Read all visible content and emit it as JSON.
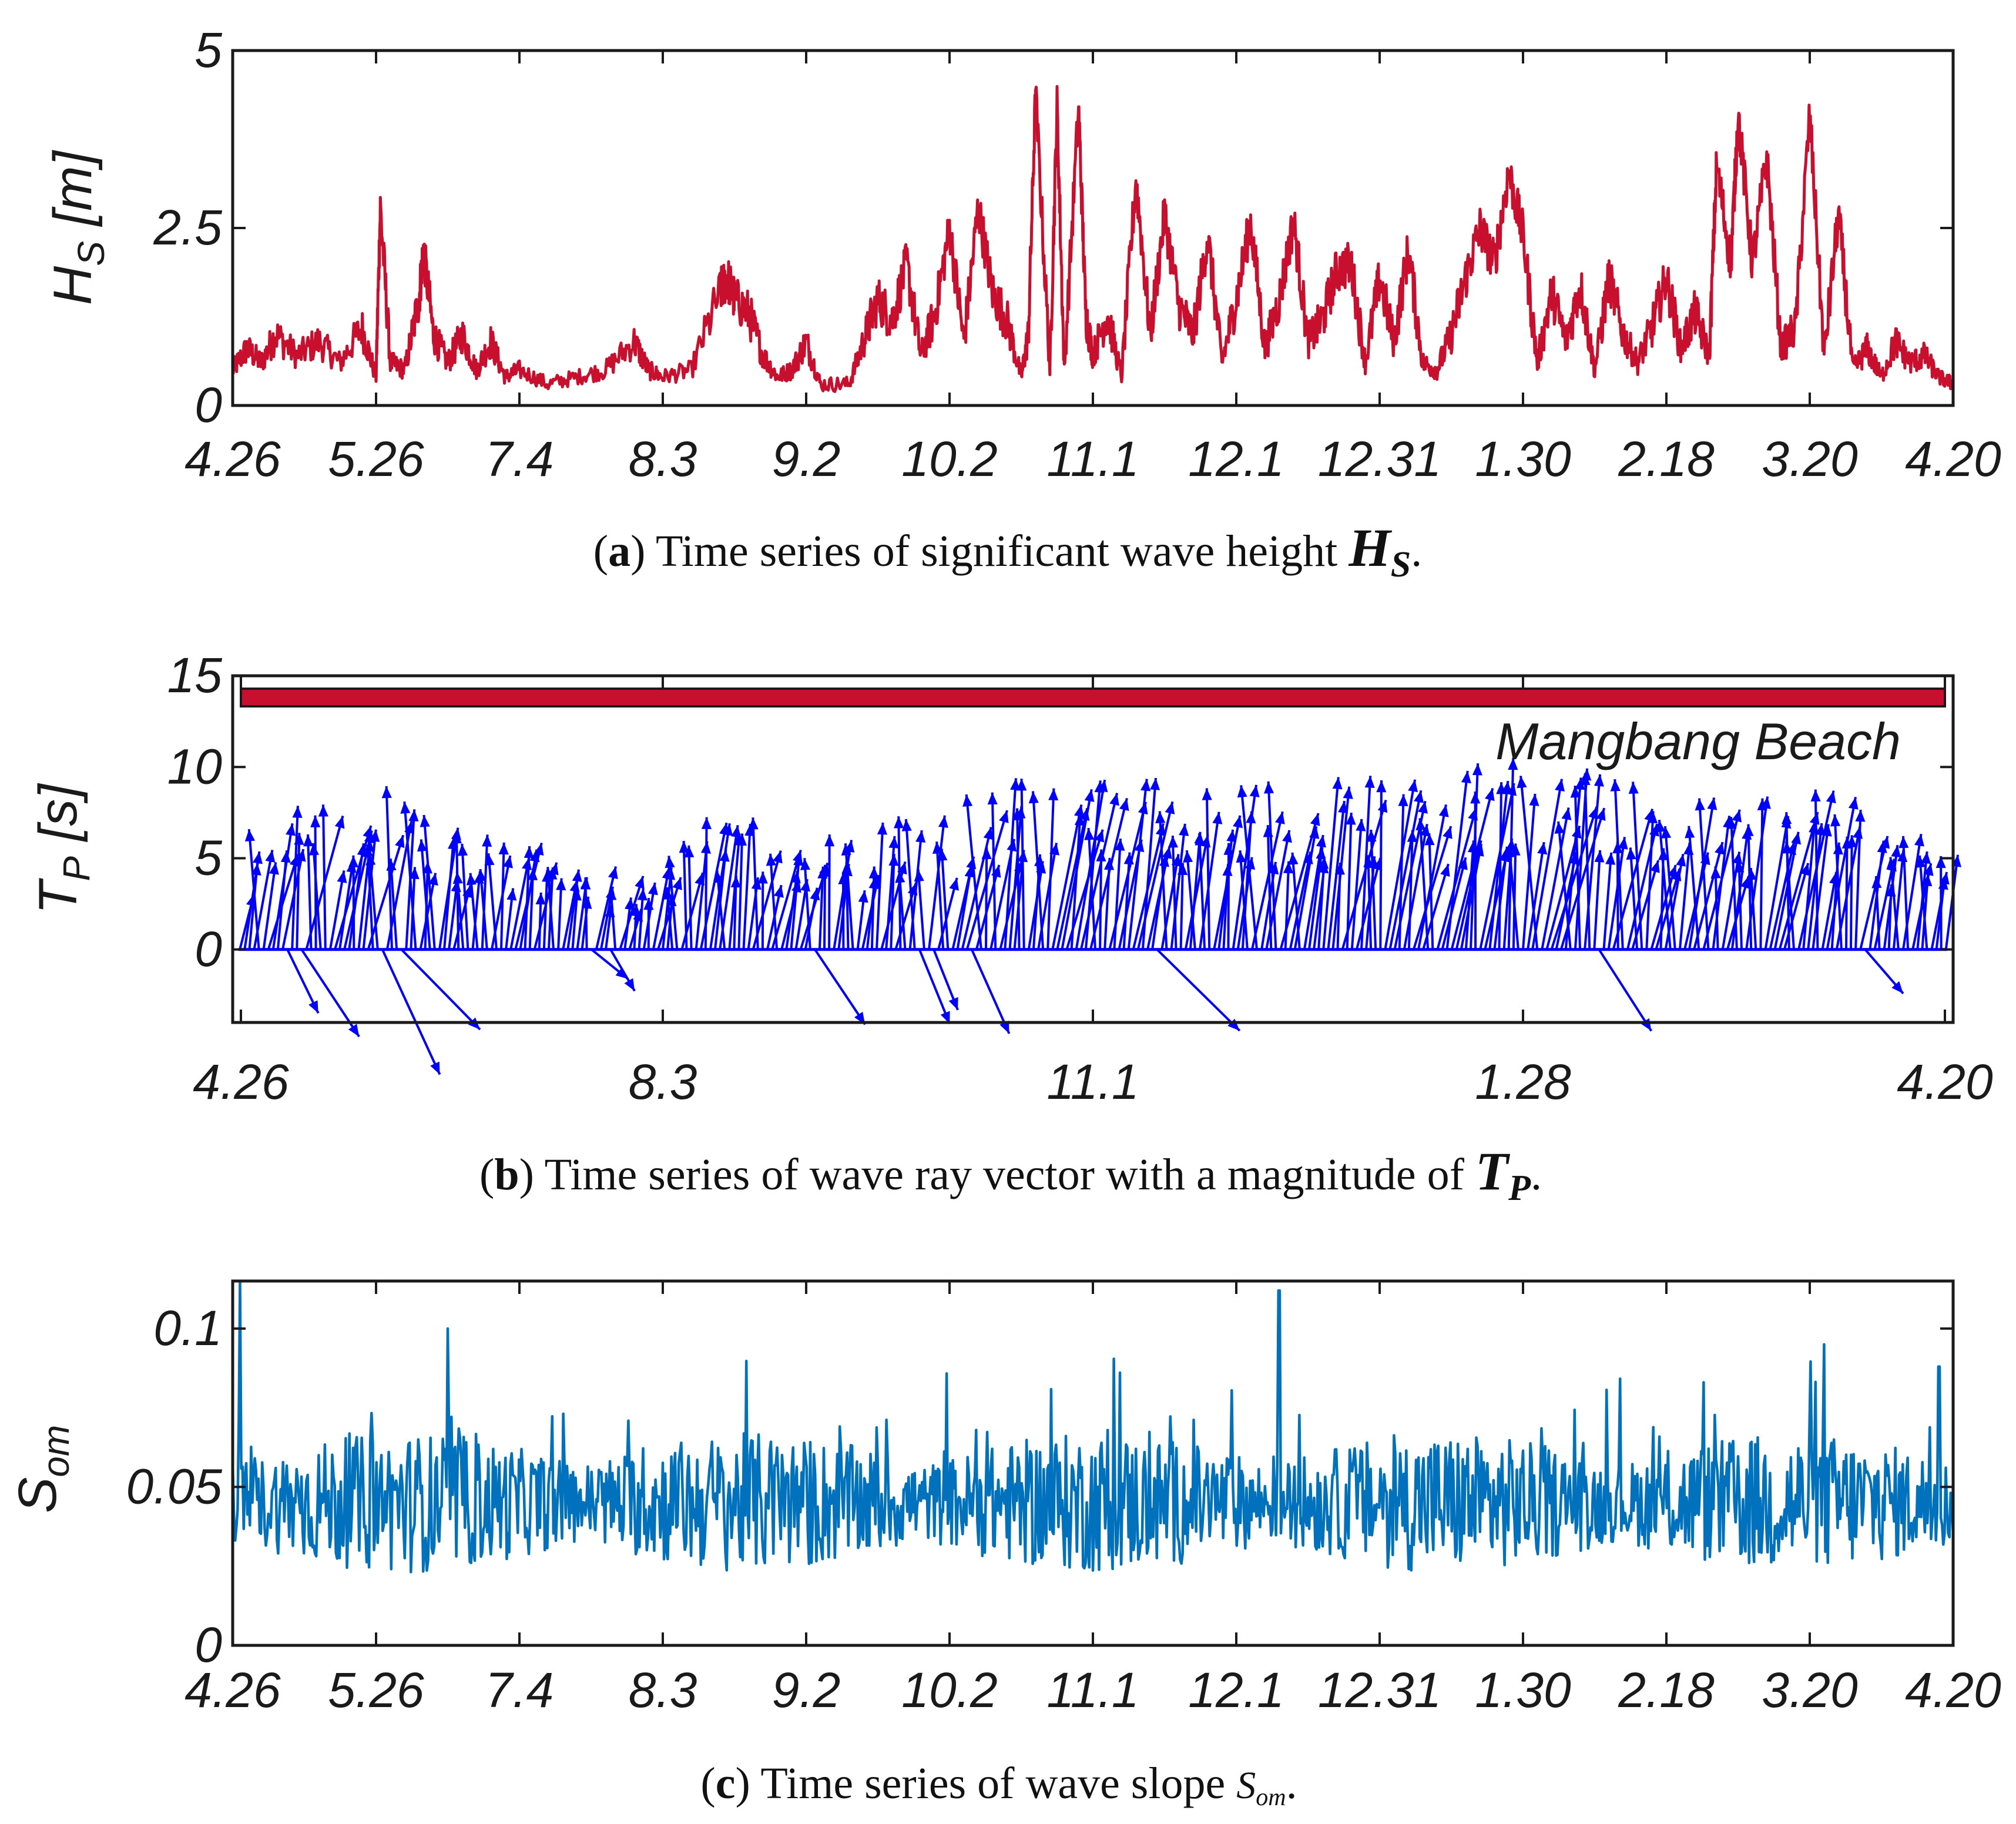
{
  "colors": {
    "hs_line": "#c8102e",
    "tp_vectors": "#0000ff",
    "som_line": "#0072bd",
    "beach_bar": "#c8102e",
    "axis": "#1a1a1a"
  },
  "chart_data": [
    {
      "id": "a",
      "type": "line",
      "title": "",
      "ylabel_main": "H",
      "ylabel_sub": "S",
      "ylabel_unit": "[m]",
      "ylim": [
        0,
        5
      ],
      "yticks": [
        0,
        2.5,
        5
      ],
      "ytick_labels": [
        "0",
        "2.5",
        "5"
      ],
      "xlim": [
        0,
        12
      ],
      "xticks": [
        0,
        1,
        2,
        3,
        4,
        5,
        6,
        7,
        8,
        9,
        10,
        11,
        12
      ],
      "xtick_labels": [
        "4.26",
        "5.26",
        "7.4",
        "8.3",
        "9.2",
        "10.2",
        "11.1",
        "12.1",
        "12.31",
        "1.30",
        "2.18",
        "3.20",
        "4.20"
      ],
      "caption_letter": "a",
      "caption_text": "Time series of significant wave height",
      "caption_symbol": "H",
      "caption_symbol_sub": "S",
      "caption_end": ".",
      "series": [
        {
          "name": "Hs",
          "x": [
            0,
            0.1,
            0.2,
            0.3,
            0.45,
            0.6,
            0.75,
            0.9,
            1.0,
            1.03,
            1.1,
            1.2,
            1.3,
            1.33,
            1.4,
            1.5,
            1.6,
            1.7,
            1.8,
            1.9,
            2.0,
            2.2,
            2.4,
            2.6,
            2.8,
            2.9,
            3.0,
            3.2,
            3.4,
            3.45,
            3.5,
            3.6,
            3.7,
            3.8,
            3.9,
            4.0,
            4.1,
            4.3,
            4.4,
            4.5,
            4.6,
            4.7,
            4.8,
            4.9,
            5.0,
            5.1,
            5.2,
            5.3,
            5.4,
            5.5,
            5.55,
            5.6,
            5.7,
            5.75,
            5.8,
            5.9,
            5.95,
            6.0,
            6.1,
            6.2,
            6.3,
            6.4,
            6.5,
            6.6,
            6.7,
            6.8,
            6.9,
            7.0,
            7.1,
            7.2,
            7.3,
            7.4,
            7.5,
            7.6,
            7.7,
            7.8,
            7.9,
            8.0,
            8.1,
            8.2,
            8.3,
            8.4,
            8.5,
            8.6,
            8.7,
            8.8,
            8.9,
            9.0,
            9.1,
            9.2,
            9.3,
            9.4,
            9.5,
            9.6,
            9.7,
            9.8,
            9.9,
            10.0,
            10.1,
            10.2,
            10.3,
            10.35,
            10.45,
            10.5,
            10.6,
            10.7,
            10.8,
            10.9,
            11.0,
            11.1,
            11.2,
            11.3,
            11.4,
            11.5,
            11.6,
            11.7,
            11.8,
            11.9,
            12.0
          ],
          "values": [
            0.5,
            0.8,
            0.6,
            1.0,
            0.7,
            0.9,
            0.6,
            1.1,
            0.4,
            2.8,
            0.6,
            0.5,
            1.5,
            2.2,
            1.0,
            0.6,
            1.0,
            0.5,
            0.9,
            0.4,
            0.5,
            0.3,
            0.4,
            0.5,
            0.9,
            0.5,
            0.4,
            0.5,
            1.6,
            1.8,
            1.5,
            1.3,
            0.7,
            0.4,
            0.5,
            0.9,
            0.3,
            0.3,
            0.9,
            1.5,
            1.2,
            2.0,
            0.7,
            1.3,
            2.5,
            0.9,
            2.8,
            1.6,
            1.2,
            0.4,
            1.0,
            4.4,
            0.5,
            4.2,
            0.5,
            4.2,
            1.3,
            0.7,
            1.3,
            0.4,
            3.2,
            1.0,
            2.7,
            1.4,
            1.0,
            2.4,
            0.6,
            1.5,
            2.6,
            0.8,
            1.5,
            2.6,
            0.9,
            1.2,
            1.9,
            2.0,
            0.6,
            1.8,
            0.9,
            2.2,
            0.6,
            0.5,
            1.0,
            1.8,
            2.5,
            2.0,
            3.3,
            2.4,
            0.6,
            1.6,
            0.9,
            1.7,
            0.5,
            1.8,
            1.0,
            0.6,
            1.1,
            1.8,
            0.8,
            1.3,
            0.7,
            3.4,
            2.0,
            4.1,
            2.0,
            3.5,
            0.8,
            1.1,
            4.1,
            0.7,
            2.7,
            0.5,
            0.8,
            0.4,
            0.9,
            0.6,
            0.7,
            0.4,
            0.3
          ]
        }
      ]
    },
    {
      "id": "b",
      "type": "scatter",
      "ylabel_main": "T",
      "ylabel_sub": "P",
      "ylabel_unit": "[s]",
      "ylim": [
        -4,
        15
      ],
      "yticks": [
        0,
        5,
        10,
        15
      ],
      "ytick_labels": [
        "0",
        "5",
        "10",
        "15"
      ],
      "xlim": [
        0,
        12
      ],
      "xticks": [
        0,
        3,
        6,
        9,
        12
      ],
      "xtick_labels": [
        "4.26",
        "8.3",
        "11.1",
        "1.28",
        "4.20"
      ],
      "annotation": "Mangbang Beach",
      "beach_bar_y": 14.2,
      "caption_letter": "b",
      "caption_text": "Time series of wave ray vector with a magnitude of",
      "caption_symbol": "T",
      "caption_symbol_sub": "P",
      "caption_end": ".",
      "vectors_note": "wave ray vectors (origin on t-axis, length = Tp, angle = direction)",
      "vector_count": 360
    },
    {
      "id": "c",
      "type": "line",
      "ylabel_main": "S",
      "ylabel_sub": "om",
      "ylim": [
        0,
        0.115
      ],
      "yticks": [
        0,
        0.05,
        0.1
      ],
      "ytick_labels": [
        "0",
        "0.05",
        "0.1"
      ],
      "xlim": [
        0,
        12
      ],
      "xticks": [
        0,
        1,
        2,
        3,
        4,
        5,
        6,
        7,
        8,
        9,
        10,
        11,
        12
      ],
      "xtick_labels": [
        "4.26",
        "5.26",
        "7.4",
        "8.3",
        "9.2",
        "10.2",
        "11.1",
        "12.1",
        "12.31",
        "1.30",
        "2.18",
        "3.20",
        "4.20"
      ],
      "caption_letter": "c",
      "caption_text": "Time series of wave slope",
      "caption_symbol": "S",
      "caption_symbol_sub": "om",
      "caption_end": ".",
      "series": [
        {
          "name": "Som",
          "mean": 0.045,
          "peaks": [
            [
              0.05,
              0.115
            ],
            [
              1.5,
              0.1
            ],
            [
              7.3,
              0.112
            ],
            [
              11.1,
              0.095
            ],
            [
              11.9,
              0.088
            ]
          ]
        }
      ]
    }
  ]
}
